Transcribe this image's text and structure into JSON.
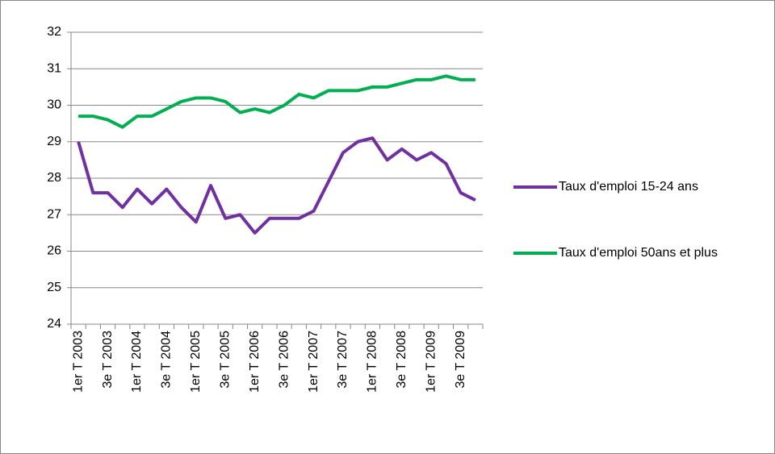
{
  "chart_data": {
    "type": "line",
    "categories": [
      "1er T 2003",
      null,
      "3e T 2003",
      null,
      "1er T 2004",
      null,
      "3e T 2004",
      null,
      "1er T 2005",
      null,
      "3e T 2005",
      null,
      "1er T 2006",
      null,
      "3e T 2006",
      null,
      "1er T 2007",
      null,
      "3e T 2007",
      null,
      "1er T 2008",
      null,
      "3e T 2008",
      null,
      "1er T 2009",
      null,
      "3e T 2009",
      null
    ],
    "series": [
      {
        "name": "Taux d'emploi 15-24 ans",
        "color": "#7030a0",
        "values": [
          29.0,
          27.6,
          27.6,
          27.2,
          27.7,
          27.3,
          27.7,
          27.2,
          26.8,
          27.8,
          26.9,
          27.0,
          26.5,
          26.9,
          26.9,
          26.9,
          27.1,
          27.9,
          28.7,
          29.0,
          29.1,
          28.5,
          28.8,
          28.5,
          28.7,
          28.4,
          27.6,
          27.4
        ]
      },
      {
        "name": "Taux d'emploi 50ans et plus",
        "color": "#00b050",
        "values": [
          29.7,
          29.7,
          29.6,
          29.4,
          29.7,
          29.7,
          29.9,
          30.1,
          30.2,
          30.2,
          30.1,
          29.8,
          29.9,
          29.8,
          30.0,
          30.3,
          30.2,
          30.4,
          30.4,
          30.4,
          30.5,
          30.5,
          30.6,
          30.7,
          30.7,
          30.8,
          30.7,
          30.7
        ]
      }
    ],
    "ylim": [
      24,
      32
    ],
    "yticks": [
      24,
      25,
      26,
      27,
      28,
      29,
      30,
      31,
      32
    ],
    "grid": true,
    "legend": "right"
  }
}
